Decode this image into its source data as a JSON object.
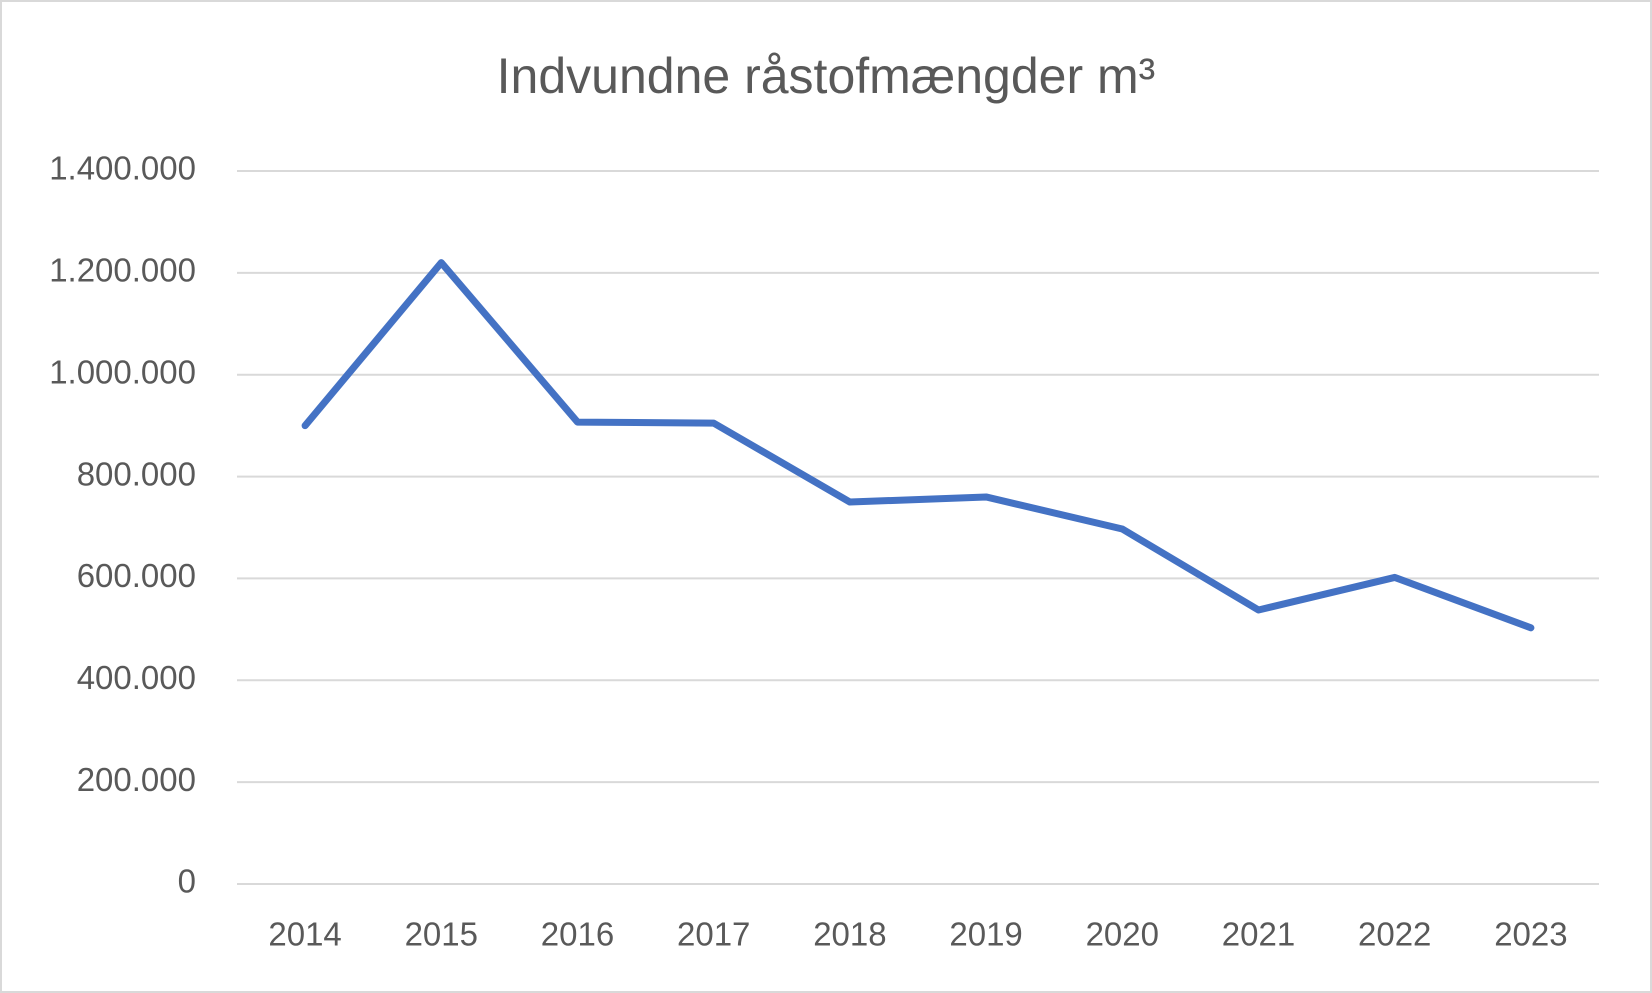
{
  "chart_data": {
    "type": "line",
    "title": "Indvundne råstofmængder m³",
    "categories": [
      "2014",
      "2015",
      "2016",
      "2017",
      "2018",
      "2019",
      "2020",
      "2021",
      "2022",
      "2023"
    ],
    "series": [
      {
        "name": "Indvundne råstofmængder",
        "color": "#4472c4",
        "values": [
          900000,
          1220000,
          907000,
          905000,
          750000,
          760000,
          697000,
          538000,
          602000,
          503000
        ]
      }
    ],
    "ylim": [
      0,
      1400000
    ],
    "yticks": [
      0,
      {
        "value": 200000,
        "label": "200.000"
      },
      {
        "value": 400000,
        "label": "400.000"
      },
      {
        "value": 600000,
        "label": "600.000"
      },
      {
        "value": 800000,
        "label": "800.000"
      },
      {
        "value": 1000000,
        "label": "1.000.000"
      },
      {
        "value": 1200000,
        "label": "1.200.000"
      },
      {
        "value": 1400000,
        "label": "1.400.000"
      }
    ],
    "grid": true
  }
}
